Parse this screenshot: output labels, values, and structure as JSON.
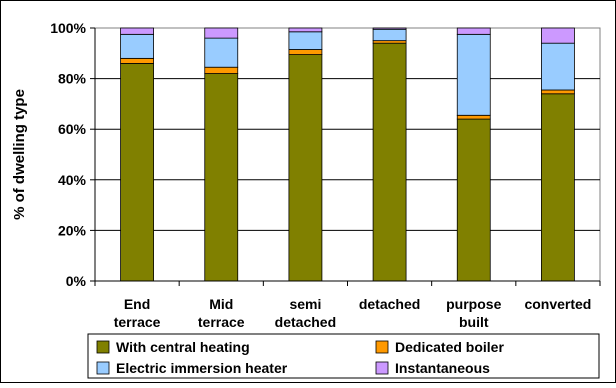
{
  "chart_data": {
    "type": "bar",
    "stacked": true,
    "title": "",
    "xlabel": "",
    "ylabel": "% of dwelling type",
    "ylim": [
      0,
      100
    ],
    "yticks": [
      "0%",
      "20%",
      "40%",
      "60%",
      "80%",
      "100%"
    ],
    "grid": true,
    "legend": "bottom",
    "categories": [
      [
        "End",
        "terrace"
      ],
      [
        "Mid",
        "terrace"
      ],
      [
        "semi",
        "detached"
      ],
      [
        "detached"
      ],
      [
        "purpose",
        "built"
      ],
      [
        "converted"
      ]
    ],
    "series": [
      {
        "name": "With central heating",
        "color": "#808000",
        "values": [
          86,
          82,
          89.5,
          94,
          64,
          74
        ]
      },
      {
        "name": "Dedicated boiler",
        "color": "#FF9900",
        "values": [
          2,
          2.5,
          2,
          1,
          1.5,
          1.5
        ]
      },
      {
        "name": "Electric immersion heater",
        "color": "#99CCFF",
        "values": [
          9.5,
          11.5,
          7,
          4.5,
          32,
          18.5
        ]
      },
      {
        "name": "Instantaneous",
        "color": "#CC99FF",
        "values": [
          2.5,
          4,
          1.5,
          0.5,
          2.5,
          6
        ]
      }
    ]
  }
}
